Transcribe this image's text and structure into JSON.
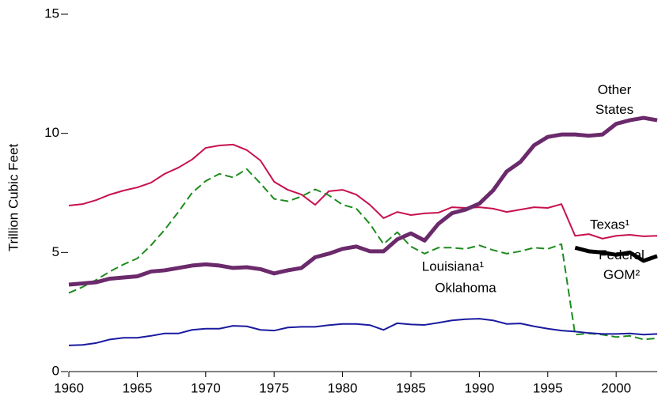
{
  "chart_data": {
    "type": "line",
    "y_label": "Trillion Cubic Feet",
    "x": [
      1960,
      1961,
      1962,
      1963,
      1964,
      1965,
      1966,
      1967,
      1968,
      1969,
      1970,
      1971,
      1972,
      1973,
      1974,
      1975,
      1976,
      1977,
      1978,
      1979,
      1980,
      1981,
      1982,
      1983,
      1984,
      1985,
      1986,
      1987,
      1988,
      1989,
      1990,
      1991,
      1992,
      1993,
      1994,
      1995,
      1996,
      1997,
      1998,
      1999,
      2000,
      2001,
      2002,
      2003
    ],
    "xlim": [
      1960,
      2003
    ],
    "xticks": [
      1960,
      1965,
      1970,
      1975,
      1980,
      1985,
      1990,
      1995,
      2000
    ],
    "ylim": [
      0,
      15
    ],
    "yticks": [
      0,
      5,
      10,
      15
    ],
    "series": [
      {
        "name": "Texas¹",
        "color": "#c8104e",
        "values": [
          6.97,
          7.03,
          7.2,
          7.43,
          7.6,
          7.73,
          7.93,
          8.3,
          8.56,
          8.9,
          9.39,
          9.49,
          9.53,
          9.3,
          8.86,
          7.97,
          7.63,
          7.43,
          7.0,
          7.57,
          7.63,
          7.43,
          7.0,
          6.44,
          6.7,
          6.57,
          6.64,
          6.67,
          6.9,
          6.87,
          6.9,
          6.84,
          6.7,
          6.8,
          6.9,
          6.87,
          7.03,
          5.7,
          5.77,
          5.58,
          5.7,
          5.74,
          5.68,
          5.7
        ]
      },
      {
        "name": "Louisiana¹",
        "color": "#1e8c1e",
        "dashed": true,
        "values": [
          3.3,
          3.55,
          3.85,
          4.2,
          4.5,
          4.75,
          5.3,
          5.95,
          6.7,
          7.5,
          8.0,
          8.3,
          8.15,
          8.5,
          7.9,
          7.25,
          7.15,
          7.35,
          7.65,
          7.4,
          7.0,
          6.85,
          6.2,
          5.35,
          5.85,
          5.25,
          4.95,
          5.2,
          5.2,
          5.15,
          5.3,
          5.1,
          4.95,
          5.05,
          5.2,
          5.15,
          5.35,
          1.55,
          1.6,
          1.55,
          1.45,
          1.5,
          1.35,
          1.4
        ]
      },
      {
        "name": "Other States",
        "color": "#6b2a6b",
        "values": [
          3.65,
          3.7,
          3.75,
          3.9,
          3.95,
          4.0,
          4.2,
          4.25,
          4.35,
          4.45,
          4.5,
          4.45,
          4.35,
          4.38,
          4.3,
          4.12,
          4.25,
          4.35,
          4.8,
          4.95,
          5.15,
          5.25,
          5.05,
          5.05,
          5.55,
          5.8,
          5.5,
          6.2,
          6.65,
          6.8,
          7.05,
          7.6,
          8.4,
          8.8,
          9.5,
          9.85,
          9.95,
          9.95,
          9.9,
          9.95,
          10.4,
          10.55,
          10.65,
          10.55
        ]
      },
      {
        "name": "Federal GOM²",
        "color": "#000000",
        "values": [
          null,
          null,
          null,
          null,
          null,
          null,
          null,
          null,
          null,
          null,
          null,
          null,
          null,
          null,
          null,
          null,
          null,
          null,
          null,
          null,
          null,
          null,
          null,
          null,
          null,
          null,
          null,
          null,
          null,
          null,
          null,
          null,
          null,
          null,
          null,
          null,
          null,
          5.2,
          5.05,
          5.0,
          4.9,
          5.0,
          4.65,
          4.85
        ]
      },
      {
        "name": "Oklahoma",
        "color": "#1a1aa0",
        "values": [
          1.1,
          1.12,
          1.2,
          1.35,
          1.42,
          1.42,
          1.5,
          1.6,
          1.6,
          1.75,
          1.8,
          1.8,
          1.92,
          1.9,
          1.75,
          1.72,
          1.85,
          1.88,
          1.88,
          1.95,
          2.0,
          2.0,
          1.95,
          1.75,
          2.03,
          1.98,
          1.96,
          2.05,
          2.15,
          2.2,
          2.22,
          2.15,
          2.0,
          2.02,
          1.9,
          1.8,
          1.72,
          1.68,
          1.62,
          1.58,
          1.58,
          1.6,
          1.55,
          1.58
        ]
      }
    ]
  }
}
